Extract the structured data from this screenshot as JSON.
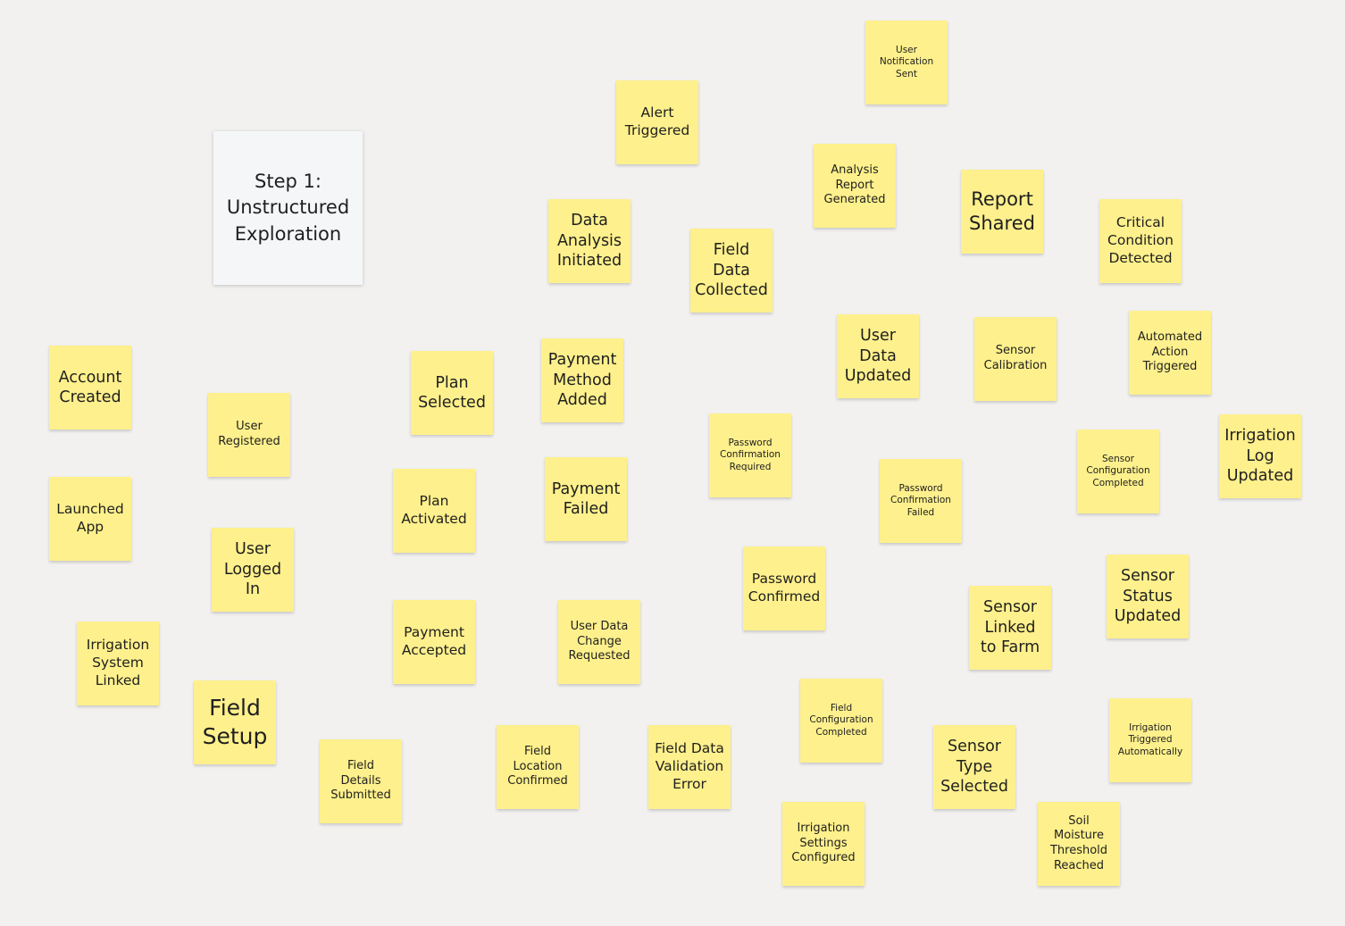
{
  "board": {
    "frame_title": "Step 1:\nUnstructured\nExploration",
    "sticky_color": "#fef08c",
    "background_color": "#f2f1f0"
  },
  "notes": {
    "user_notification_sent": "User\nNotification\nSent",
    "alert_triggered": "Alert\nTriggered",
    "analysis_report_generated": "Analysis\nReport\nGenerated",
    "report_shared": "Report\nShared",
    "critical_condition_detected": "Critical\nCondition\nDetected",
    "data_analysis_initiated": "Data\nAnalysis\nInitiated",
    "field_data_collected": "Field\nData\nCollected",
    "user_data_updated": "User\nData\nUpdated",
    "sensor_calibration": "Sensor\nCalibration",
    "automated_action_triggered": "Automated\nAction\nTriggered",
    "account_created": "Account\nCreated",
    "plan_selected": "Plan\nSelected",
    "payment_method_added": "Payment\nMethod\nAdded",
    "user_registered": "User\nRegistered",
    "password_confirmation_required": "Password\nConfirmation\nRequired",
    "irrigation_log_updated": "Irrigation\nLog\nUpdated",
    "sensor_configuration_completed": "Sensor\nConfiguration\nCompleted",
    "password_confirmation_failed": "Password\nConfirmation\nFailed",
    "launched_app": "Launched\nApp",
    "plan_activated": "Plan\nActivated",
    "payment_failed": "Payment\nFailed",
    "user_logged_in": "User\nLogged\nIn",
    "password_confirmed": "Password\nConfirmed",
    "sensor_status_updated": "Sensor\nStatus\nUpdated",
    "sensor_linked_to_farm": "Sensor\nLinked\nto Farm",
    "irrigation_system_linked": "Irrigation\nSystem\nLinked",
    "payment_accepted": "Payment\nAccepted",
    "user_data_change_requested": "User Data\nChange\nRequested",
    "field_setup": "Field\nSetup",
    "field_configuration_completed": "Field\nConfiguration\nCompleted",
    "irrigation_triggered_automatically": "Irrigation\nTriggered\nAutomatically",
    "field_details_submitted": "Field\nDetails\nSubmitted",
    "field_location_confirmed": "Field\nLocation\nConfirmed",
    "field_data_validation_error": "Field Data\nValidation\nError",
    "sensor_type_selected": "Sensor\nType\nSelected",
    "irrigation_settings_configured": "Irrigation\nSettings\nConfigured",
    "soil_moisture_threshold_reached": "Soil\nMoisture\nThreshold\nReached"
  }
}
